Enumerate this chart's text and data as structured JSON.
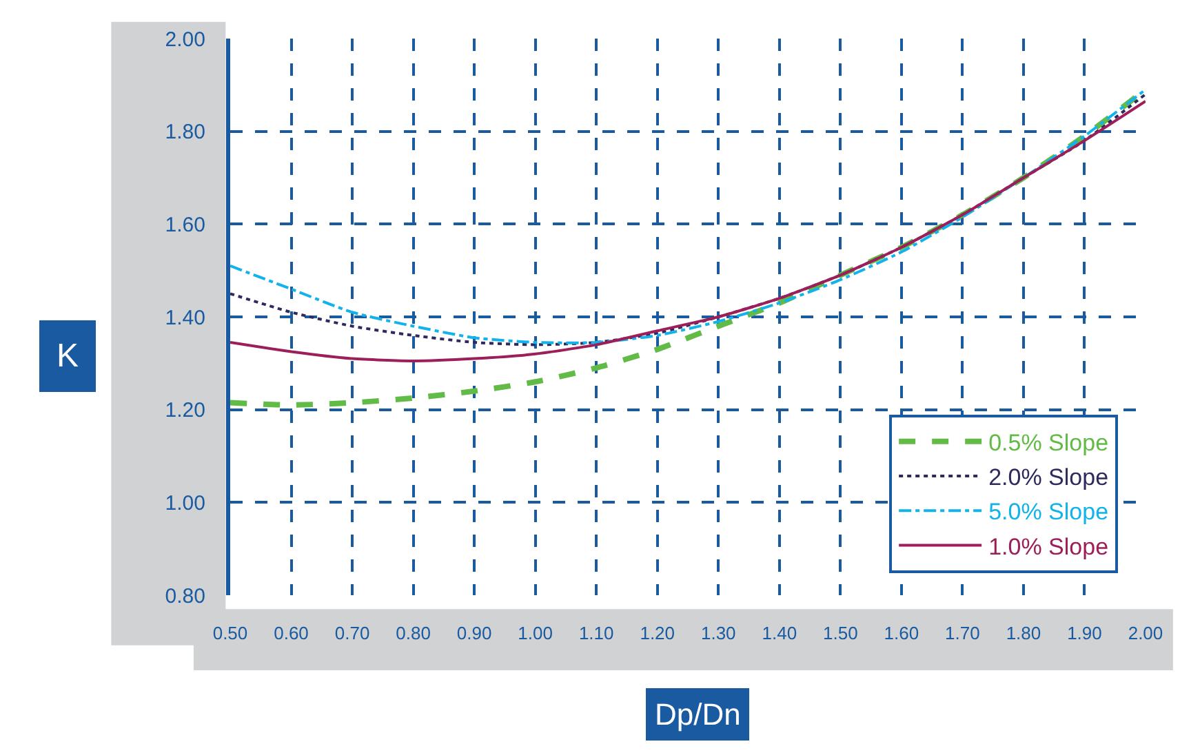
{
  "chart_data": {
    "type": "line",
    "xlabel": "Dp/Dn",
    "ylabel": "K",
    "x": [
      0.5,
      0.6,
      0.7,
      0.8,
      0.9,
      1.0,
      1.1,
      1.2,
      1.3,
      1.4,
      1.5,
      1.6,
      1.7,
      1.8,
      1.9,
      2.0
    ],
    "series": [
      {
        "name": "0.5% Slope",
        "color": "#62bb46",
        "line_style": "dashed",
        "values": [
          1.215,
          1.21,
          1.215,
          1.225,
          1.24,
          1.26,
          1.29,
          1.33,
          1.38,
          1.43,
          1.49,
          1.55,
          1.62,
          1.7,
          1.79,
          1.89
        ]
      },
      {
        "name": "2.0% Slope",
        "color": "#2e2a5e",
        "line_style": "dotted",
        "values": [
          1.45,
          1.41,
          1.38,
          1.36,
          1.345,
          1.34,
          1.345,
          1.365,
          1.4,
          1.44,
          1.49,
          1.55,
          1.62,
          1.7,
          1.78,
          1.88
        ]
      },
      {
        "name": "5.0% Slope",
        "color": "#12b2ea",
        "line_style": "dashdot",
        "values": [
          1.51,
          1.46,
          1.41,
          1.38,
          1.355,
          1.345,
          1.345,
          1.36,
          1.39,
          1.43,
          1.48,
          1.54,
          1.615,
          1.7,
          1.79,
          1.89
        ]
      },
      {
        "name": "1.0% Slope",
        "color": "#9c1f5a",
        "line_style": "solid",
        "values": [
          1.345,
          1.325,
          1.31,
          1.305,
          1.31,
          1.32,
          1.34,
          1.37,
          1.4,
          1.44,
          1.49,
          1.55,
          1.62,
          1.7,
          1.78,
          1.865
        ]
      }
    ],
    "xlim": [
      0.5,
      2.0
    ],
    "xticks": [
      {
        "value": 0.5,
        "label": "0.50"
      },
      {
        "value": 0.6,
        "label": "0.60"
      },
      {
        "value": 0.7,
        "label": "0.70"
      },
      {
        "value": 0.8,
        "label": "0.80"
      },
      {
        "value": 0.9,
        "label": "0.90"
      },
      {
        "value": 1.0,
        "label": "1.00"
      },
      {
        "value": 1.1,
        "label": "1.10"
      },
      {
        "value": 1.2,
        "label": "1.20"
      },
      {
        "value": 1.3,
        "label": "1.30"
      },
      {
        "value": 1.4,
        "label": "1.40"
      },
      {
        "value": 1.5,
        "label": "1.50"
      },
      {
        "value": 1.6,
        "label": "1.60"
      },
      {
        "value": 1.7,
        "label": "1.70"
      },
      {
        "value": 1.8,
        "label": "1.80"
      },
      {
        "value": 1.9,
        "label": "1.90"
      },
      {
        "value": 2.0,
        "label": "2.00"
      }
    ],
    "ylim": [
      0.8,
      2.0
    ],
    "yticks": [
      {
        "value": 0.8,
        "label": "0.80"
      },
      {
        "value": 1.0,
        "label": "1.00"
      },
      {
        "value": 1.2,
        "label": "1.20"
      },
      {
        "value": 1.4,
        "label": "1.40"
      },
      {
        "value": 1.6,
        "label": "1.60"
      },
      {
        "value": 1.8,
        "label": "1.80"
      },
      {
        "value": 2.0,
        "label": "2.00"
      }
    ],
    "grid": true,
    "legend": "bottom right",
    "marker": "none"
  }
}
